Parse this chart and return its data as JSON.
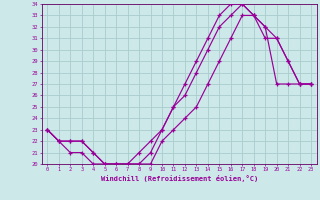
{
  "xlabel": "Windchill (Refroidissement éolien,°C)",
  "bg_color": "#cce8e8",
  "grid_color": "#aacccc",
  "line_color": "#990099",
  "spine_color": "#660066",
  "xlim": [
    -0.5,
    23.5
  ],
  "ylim": [
    20,
    34
  ],
  "xticks": [
    0,
    1,
    2,
    3,
    4,
    5,
    6,
    7,
    8,
    9,
    10,
    11,
    12,
    13,
    14,
    15,
    16,
    17,
    18,
    19,
    20,
    21,
    22,
    23
  ],
  "yticks": [
    20,
    21,
    22,
    23,
    24,
    25,
    26,
    27,
    28,
    29,
    30,
    31,
    32,
    33,
    34
  ],
  "line1_x": [
    0,
    1,
    2,
    3,
    4,
    5,
    6,
    7,
    8,
    9,
    10,
    11,
    12,
    13,
    14,
    15,
    16,
    17,
    18,
    19,
    20,
    21,
    22,
    23
  ],
  "line1_y": [
    23,
    22,
    22,
    22,
    21,
    20,
    20,
    20,
    20,
    20,
    22,
    23,
    24,
    25,
    27,
    29,
    31,
    33,
    33,
    31,
    31,
    29,
    27,
    27
  ],
  "line2_x": [
    0,
    1,
    2,
    3,
    4,
    5,
    6,
    7,
    8,
    9,
    10,
    11,
    12,
    13,
    14,
    15,
    16,
    17,
    18,
    19,
    20,
    21,
    22,
    23
  ],
  "line2_y": [
    23,
    22,
    21,
    21,
    20,
    20,
    20,
    20,
    20,
    21,
    23,
    25,
    26,
    28,
    30,
    32,
    33,
    34,
    33,
    32,
    27,
    27,
    27,
    27
  ],
  "line3_x": [
    0,
    1,
    2,
    3,
    4,
    5,
    6,
    7,
    8,
    9,
    10,
    11,
    12,
    13,
    14,
    15,
    16,
    17,
    18,
    19,
    20,
    21,
    22,
    23
  ],
  "line3_y": [
    23,
    22,
    22,
    22,
    21,
    20,
    20,
    20,
    21,
    22,
    23,
    25,
    27,
    29,
    31,
    33,
    34,
    34,
    33,
    32,
    31,
    29,
    27,
    27
  ]
}
